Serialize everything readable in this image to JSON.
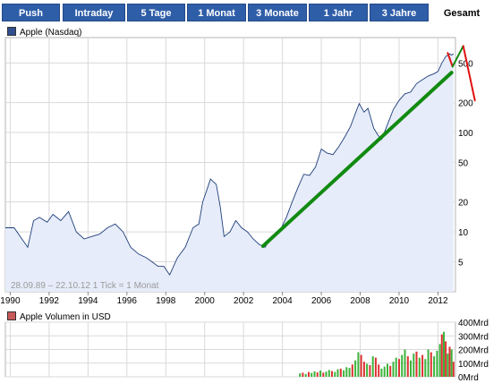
{
  "tabs": [
    {
      "label": "Push",
      "active": false
    },
    {
      "label": "Intraday",
      "active": false
    },
    {
      "label": "5 Tage",
      "active": false
    },
    {
      "label": "1 Monat",
      "active": false
    },
    {
      "label": "3 Monate",
      "active": false
    },
    {
      "label": "1 Jahr",
      "active": false
    },
    {
      "label": "3 Jahre",
      "active": false
    },
    {
      "label": "Gesamt",
      "active": true
    }
  ],
  "colors": {
    "tab_bg": "#2f5ea8",
    "price_fill": "#e6ecf9",
    "price_line": "#1f3e7a",
    "trend_green": "#118a11",
    "trend_red": "#e01010",
    "volume_green": "#3cb43c",
    "volume_red": "#dc3232",
    "grid": "#d9d9d9"
  },
  "chart_data": [
    {
      "type": "line",
      "legend": "Apple (Nasdaq)",
      "legend_color": "#2f4f8f",
      "info_text": "28.09.89 – 22.10.12   1 Tick = 1 Monat",
      "y_scale": "log",
      "ylim": [
        2.5,
        900
      ],
      "yticks": [
        5,
        10,
        20,
        50,
        100,
        200,
        500
      ],
      "ytick_labels": [
        "5",
        "10",
        "20",
        "50",
        "100",
        "200",
        "500"
      ],
      "xlim": [
        1989.75,
        2012.9
      ],
      "xticks": [
        1990,
        1992,
        1994,
        1996,
        1998,
        2000,
        2002,
        2004,
        2006,
        2008,
        2010,
        2012
      ],
      "xtick_labels": [
        "1990",
        "1992",
        "1994",
        "1996",
        "1998",
        "2000",
        "2002",
        "2004",
        "2006",
        "2008",
        "2010",
        "2012"
      ],
      "grid": true,
      "series": [
        {
          "values_x": [
            1989.75,
            1990.2,
            1990.6,
            1990.9,
            1991.2,
            1991.5,
            1991.9,
            1992.2,
            1992.6,
            1993.0,
            1993.4,
            1993.8,
            1994.2,
            1994.6,
            1995.0,
            1995.4,
            1995.8,
            1996.2,
            1996.6,
            1997.0,
            1997.3,
            1997.6,
            1997.9,
            1998.2,
            1998.6,
            1999.0,
            1999.4,
            1999.7,
            1999.9,
            2000.1,
            2000.3,
            2000.6,
            2000.8,
            2001.0,
            2001.3,
            2001.6,
            2001.9,
            2002.2,
            2002.5,
            2002.8,
            2003.1,
            2003.3,
            2003.6,
            2003.9,
            2004.2,
            2004.5,
            2004.8,
            2005.1,
            2005.4,
            2005.7,
            2006.0,
            2006.3,
            2006.6,
            2006.9,
            2007.2,
            2007.5,
            2007.8,
            2007.95,
            2008.2,
            2008.4,
            2008.7,
            2008.9,
            2009.1,
            2009.4,
            2009.7,
            2010.0,
            2010.3,
            2010.6,
            2010.9,
            2011.2,
            2011.5,
            2011.8,
            2012.0,
            2012.2,
            2012.4,
            2012.6,
            2012.7,
            2012.8
          ],
          "values_y": [
            11,
            11,
            8.5,
            7,
            13,
            14,
            12.5,
            15,
            13,
            16,
            10,
            8.5,
            9,
            9.5,
            11,
            12,
            10,
            7,
            6,
            5.5,
            5,
            4.5,
            4.5,
            3.7,
            5.5,
            7,
            11,
            12,
            20,
            26,
            34,
            30,
            18,
            9,
            10,
            13,
            11,
            10,
            8.5,
            7.5,
            7,
            8,
            9.5,
            10.5,
            14,
            20,
            28,
            38,
            37,
            45,
            68,
            62,
            60,
            72,
            90,
            115,
            165,
            195,
            160,
            175,
            110,
            95,
            85,
            120,
            170,
            210,
            245,
            255,
            310,
            340,
            370,
            390,
            410,
            500,
            580,
            620,
            600,
            620
          ]
        }
      ],
      "annotations": [
        {
          "type": "trendline",
          "color": "green",
          "from": [
            2003.0,
            7.2
          ],
          "to": [
            2012.7,
            400
          ]
        },
        {
          "type": "trendline",
          "color": "red",
          "from": [
            2012.5,
            630
          ],
          "to": [
            2012.75,
            460
          ]
        },
        {
          "type": "trendline",
          "color": "green",
          "from": [
            2012.75,
            460
          ],
          "to": [
            2013.3,
            740
          ]
        },
        {
          "type": "trendline",
          "color": "red",
          "from": [
            2013.3,
            740
          ],
          "to": [
            2013.9,
            210
          ]
        }
      ]
    },
    {
      "type": "bar",
      "legend": "Apple Volumen in USD",
      "legend_color": "#c85a5a",
      "ylim": [
        0,
        400
      ],
      "yticks": [
        0,
        100,
        200,
        300,
        400
      ],
      "ytick_labels": [
        "0Mrd",
        "100Mrd",
        "200Mrd",
        "300Mrd",
        "400Mrd"
      ],
      "xlim": [
        1989.75,
        2012.9
      ],
      "grid": true,
      "bars_x": [
        2004.9,
        2005.05,
        2005.2,
        2005.35,
        2005.5,
        2005.65,
        2005.8,
        2005.95,
        2006.1,
        2006.25,
        2006.4,
        2006.55,
        2006.7,
        2006.85,
        2007.0,
        2007.15,
        2007.3,
        2007.45,
        2007.6,
        2007.75,
        2007.9,
        2008.05,
        2008.2,
        2008.35,
        2008.5,
        2008.65,
        2008.8,
        2008.95,
        2009.1,
        2009.25,
        2009.4,
        2009.55,
        2009.7,
        2009.85,
        2010.0,
        2010.15,
        2010.3,
        2010.45,
        2010.6,
        2010.75,
        2010.9,
        2011.05,
        2011.2,
        2011.35,
        2011.5,
        2011.65,
        2011.8,
        2011.95,
        2012.1,
        2012.2,
        2012.3,
        2012.4,
        2012.5,
        2012.6,
        2012.7,
        2012.8
      ],
      "bars_value": [
        25,
        30,
        20,
        35,
        28,
        40,
        32,
        45,
        30,
        38,
        50,
        42,
        36,
        55,
        60,
        48,
        70,
        65,
        90,
        120,
        180,
        160,
        110,
        95,
        85,
        150,
        140,
        90,
        60,
        75,
        95,
        80,
        110,
        140,
        130,
        160,
        200,
        150,
        120,
        170,
        185,
        140,
        160,
        130,
        200,
        180,
        150,
        190,
        240,
        310,
        330,
        260,
        170,
        220,
        200,
        110
      ],
      "bars_up": [
        true,
        false,
        true,
        false,
        true,
        true,
        false,
        true,
        false,
        true,
        true,
        false,
        true,
        true,
        false,
        true,
        true,
        true,
        false,
        true,
        true,
        false,
        false,
        true,
        false,
        true,
        false,
        false,
        true,
        true,
        true,
        false,
        true,
        true,
        false,
        true,
        true,
        false,
        true,
        true,
        false,
        true,
        false,
        true,
        true,
        false,
        true,
        true,
        true,
        false,
        true,
        false,
        true,
        false,
        true,
        false
      ]
    }
  ]
}
